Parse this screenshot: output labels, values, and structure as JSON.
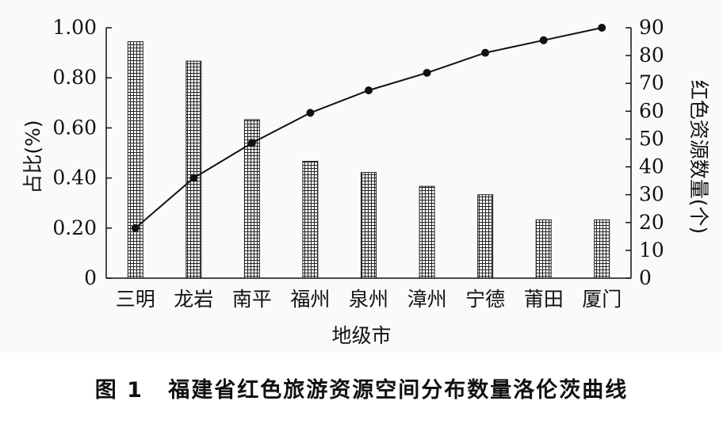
{
  "chart_data": {
    "type": "bar",
    "title": "",
    "xlabel": "地级市",
    "ylabel": "占比(%)",
    "y2label": "红色资源数量(个)",
    "categories": [
      "三明",
      "龙岩",
      "南平",
      "福州",
      "泉州",
      "漳州",
      "宁德",
      "莆田",
      "厦门"
    ],
    "series": [
      {
        "kind": "bar",
        "axis": "right",
        "values": [
          85,
          78,
          57,
          42,
          38,
          33,
          30,
          21,
          21
        ]
      },
      {
        "kind": "line",
        "axis": "left",
        "values": [
          0.2,
          0.4,
          0.54,
          0.66,
          0.75,
          0.82,
          0.9,
          0.95,
          1.0
        ]
      }
    ],
    "ylim": [
      0,
      1.0
    ],
    "y2lim": [
      0,
      90
    ],
    "yticks": [
      "0",
      "0.20",
      "0.40",
      "0.60",
      "0.80",
      "1.00"
    ],
    "y2ticks": [
      "0",
      "10",
      "20",
      "30",
      "40",
      "50",
      "60",
      "70",
      "80",
      "90"
    ],
    "grid": false,
    "legend": "none",
    "colors": {
      "bar_fill": "#ffffff",
      "bar_hatch": "#222222",
      "line": "#111111"
    }
  },
  "caption": {
    "number": "图 1",
    "text": "福建省红色旅游资源空间分布数量洛伦茨曲线"
  }
}
